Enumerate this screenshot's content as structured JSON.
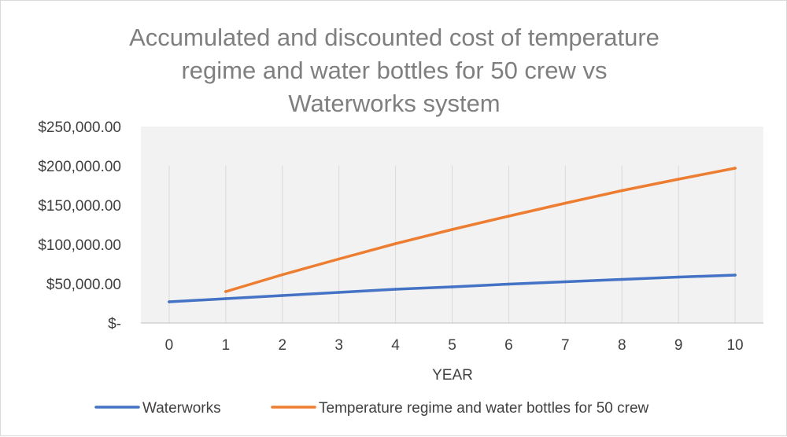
{
  "chart_data": {
    "type": "line",
    "title_lines": [
      "Accumulated and discounted cost of temperature",
      "regime and water bottles for 50 crew vs",
      "Waterworks system"
    ],
    "xlabel": "YEAR",
    "ylabel": "",
    "categories": [
      "0",
      "1",
      "2",
      "3",
      "4",
      "5",
      "6",
      "7",
      "8",
      "9",
      "10"
    ],
    "ylim": [
      0,
      250000
    ],
    "y_ticks": [
      0,
      50000,
      100000,
      150000,
      200000,
      250000
    ],
    "y_tick_labels": [
      "$-",
      "$50,000.00",
      "$100,000.00",
      "$150,000.00",
      "$200,000.00",
      "$250,000.00"
    ],
    "plot_area_color": "#f2f2f2",
    "vertical_gridlines": true,
    "legend_position": "bottom",
    "series": [
      {
        "name": "Waterworks",
        "color": "#4472c4",
        "values": [
          27000,
          31000,
          35000,
          39000,
          43000,
          46000,
          49500,
          52500,
          55500,
          58500,
          61000
        ]
      },
      {
        "name": "Temperature regime and water bottles for 50 crew",
        "color": "#ed7d31",
        "values": [
          null,
          40000,
          61500,
          81500,
          101000,
          119000,
          136000,
          152500,
          168500,
          183000,
          197000
        ]
      }
    ]
  }
}
